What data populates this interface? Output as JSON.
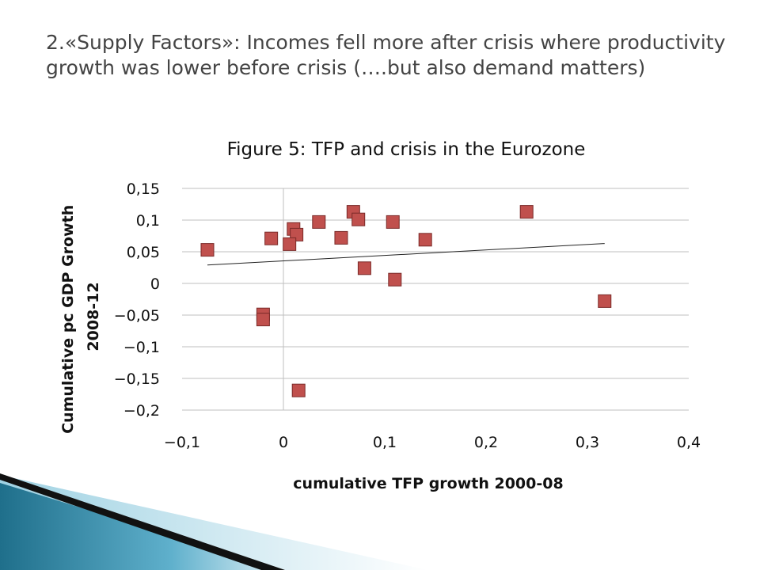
{
  "slide": {
    "heading": "2.«Supply Factors»:  Incomes fell more after crisis where productivity growth was lower  before crisis (….but also demand matters)"
  },
  "chart_data": {
    "type": "scatter",
    "title": "Figure 5: TFP and crisis in the Eurozone",
    "xlabel": "cumulative TFP growth 2000-08",
    "ylabel_lines": [
      "Cumulative  pc  GDP  Growth",
      "2008-12"
    ],
    "xlim": [
      -0.1,
      0.4
    ],
    "ylim": [
      -0.2,
      0.15
    ],
    "x_ticks": [
      -0.1,
      0,
      0.1,
      0.2,
      0.3,
      0.4
    ],
    "x_tick_labels": [
      "-0,1",
      "0",
      "0,1",
      "0,2",
      "0,3",
      "0,4"
    ],
    "y_ticks": [
      0.15,
      0.1,
      0.05,
      0,
      -0.05,
      -0.1,
      -0.15,
      -0.2
    ],
    "y_tick_labels": [
      "0,15",
      "0,1",
      "0,05",
      "0",
      "-0,05",
      "-0,1",
      "-0,15",
      "-0,2"
    ],
    "grid": "horizontal",
    "marker_color": "#C0504D",
    "points": [
      {
        "x": -0.075,
        "y": 0.053
      },
      {
        "x": -0.012,
        "y": 0.071
      },
      {
        "x": 0.01,
        "y": 0.086
      },
      {
        "x": 0.013,
        "y": 0.077
      },
      {
        "x": 0.006,
        "y": 0.062
      },
      {
        "x": 0.035,
        "y": 0.097
      },
      {
        "x": 0.057,
        "y": 0.072
      },
      {
        "x": 0.069,
        "y": 0.113
      },
      {
        "x": 0.074,
        "y": 0.101
      },
      {
        "x": 0.08,
        "y": 0.024
      },
      {
        "x": 0.108,
        "y": 0.097
      },
      {
        "x": 0.11,
        "y": 0.006
      },
      {
        "x": 0.14,
        "y": 0.069
      },
      {
        "x": 0.24,
        "y": 0.113
      },
      {
        "x": 0.317,
        "y": -0.028
      },
      {
        "x": -0.02,
        "y": -0.049
      },
      {
        "x": -0.02,
        "y": -0.057
      },
      {
        "x": 0.015,
        "y": -0.169
      }
    ],
    "trendline": {
      "x": [
        -0.075,
        0.317
      ],
      "y": [
        0.029,
        0.063
      ]
    }
  }
}
